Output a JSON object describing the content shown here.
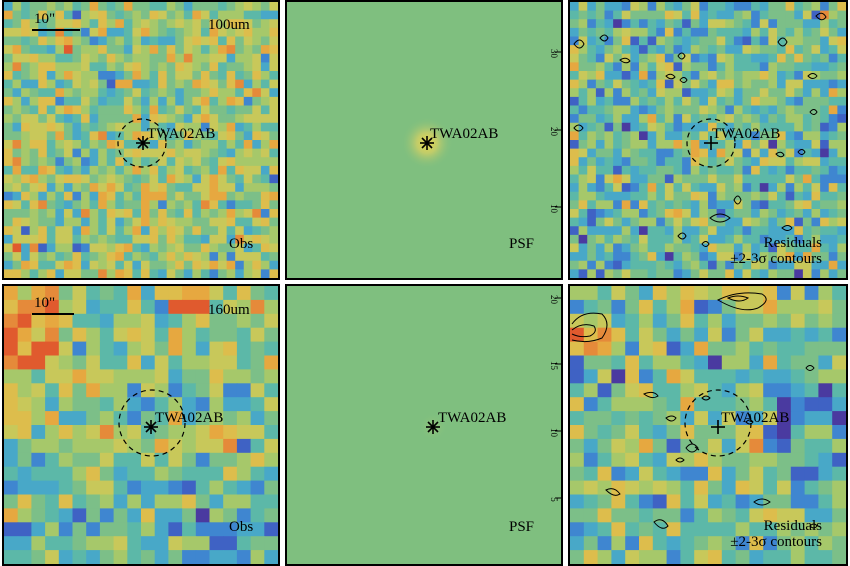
{
  "source_name": "TWA02AB",
  "scale_label": "10\"",
  "rows": [
    {
      "band": "100um",
      "panels": [
        {
          "kind": "obs",
          "label": "Obs"
        },
        {
          "kind": "psf",
          "label": "PSF",
          "ticks": [
            "30",
            "20",
            "10"
          ]
        },
        {
          "kind": "res",
          "label_line1": "Residuals",
          "label_line2": "±2-3σ contours"
        }
      ]
    },
    {
      "band": "160um",
      "panels": [
        {
          "kind": "obs",
          "label": "Obs"
        },
        {
          "kind": "psf",
          "label": "PSF",
          "ticks": [
            "20",
            "15",
            "10",
            "5"
          ]
        },
        {
          "kind": "res",
          "label_line1": "Residuals",
          "label_line2": "±2-3σ contours"
        }
      ]
    }
  ],
  "colors": {
    "psf_background": "#7fbf7f",
    "psf_core": "#d8d060",
    "contour": "#000000"
  }
}
